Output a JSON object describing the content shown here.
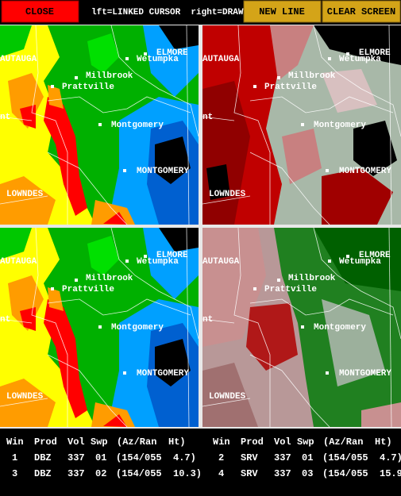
{
  "toolbar": {
    "close": "CLOSE",
    "hint": "lft=LINKED CURSOR  right=DRAW",
    "new_line": "NEW LINE",
    "clear_screen": "CLEAR SCREEN"
  },
  "map_labels": [
    "ELMORE",
    "AUTAUGA",
    "Wetumpka",
    "Millbrook",
    "Prattville",
    "nt",
    "Montgomery",
    "MONTGOMERY",
    "LOWNDES"
  ],
  "table": {
    "header": [
      "Win",
      "Prod",
      "Vol",
      "Swp",
      "(Az/Ran",
      "Ht)"
    ],
    "windows": [
      [
        "1",
        "DBZ",
        "337",
        "01",
        "(154/055",
        "4.7)"
      ],
      [
        "2",
        "SRV",
        "337",
        "01",
        "(154/055",
        "4.7)"
      ],
      [
        "3",
        "DBZ",
        "337",
        "02",
        "(154/055",
        "10.3)"
      ],
      [
        "4",
        "SRV",
        "337",
        "03",
        "(154/055",
        "15.9"
      ]
    ]
  }
}
